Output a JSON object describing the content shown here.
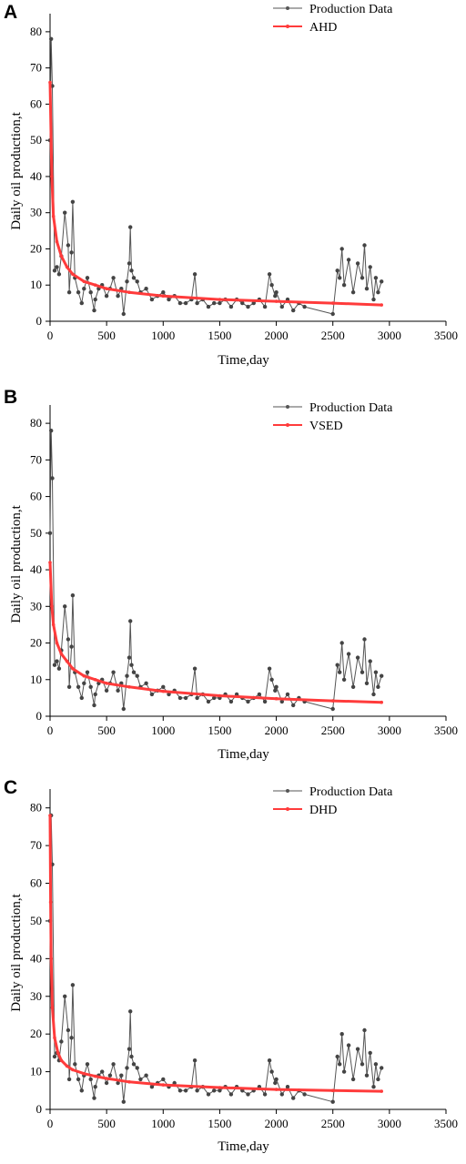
{
  "chart_data": [
    {
      "panel": "A",
      "type": "line",
      "xlabel": "Time,day",
      "ylabel": "Daily oil production,t",
      "xlim": [
        0,
        3500
      ],
      "ylim": [
        0,
        85
      ],
      "xticks": [
        0,
        500,
        1000,
        1500,
        2000,
        2500,
        3000,
        3500
      ],
      "yticks": [
        0,
        10,
        20,
        30,
        40,
        50,
        60,
        70,
        80
      ],
      "legend_position": "top-right",
      "series": [
        {
          "name": "Production Data",
          "color": "#555555",
          "x": [
            0,
            10,
            20,
            40,
            60,
            80,
            100,
            130,
            160,
            170,
            190,
            200,
            220,
            250,
            280,
            300,
            330,
            360,
            390,
            400,
            430,
            460,
            500,
            530,
            560,
            600,
            630,
            650,
            680,
            700,
            710,
            720,
            740,
            770,
            800,
            850,
            900,
            950,
            1000,
            1050,
            1100,
            1150,
            1200,
            1250,
            1280,
            1300,
            1350,
            1400,
            1450,
            1500,
            1550,
            1600,
            1650,
            1700,
            1750,
            1800,
            1850,
            1900,
            1940,
            1960,
            1990,
            2000,
            2050,
            2100,
            2150,
            2200,
            2250,
            2500,
            2540,
            2560,
            2580,
            2600,
            2640,
            2680,
            2720,
            2760,
            2780,
            2800,
            2830,
            2860,
            2880,
            2900,
            2930
          ],
          "y": [
            50,
            78,
            65,
            14,
            15,
            13,
            18,
            30,
            21,
            8,
            19,
            33,
            12,
            8,
            5,
            9,
            12,
            8,
            3,
            6,
            9,
            10,
            7,
            9,
            12,
            7,
            9,
            2,
            11,
            16,
            26,
            14,
            12,
            11,
            8,
            9,
            6,
            7,
            8,
            6,
            7,
            5,
            5,
            6,
            13,
            5,
            6,
            4,
            5,
            5,
            6,
            4,
            6,
            5,
            4,
            5,
            6,
            4,
            13,
            10,
            7,
            8,
            4,
            6,
            3,
            5,
            4,
            2,
            14,
            12,
            20,
            10,
            17,
            8,
            16,
            12,
            21,
            9,
            15,
            6,
            12,
            8,
            11
          ]
        },
        {
          "name": "AHD",
          "color": "#ff3b3b",
          "x": [
            0,
            15,
            30,
            60,
            100,
            150,
            200,
            300,
            400,
            500,
            700,
            1000,
            1500,
            2000,
            2500,
            2930
          ],
          "y": [
            66,
            40,
            29,
            22,
            18,
            15,
            13,
            11,
            10,
            9,
            8,
            7,
            6,
            5.5,
            5,
            4.5
          ]
        }
      ]
    },
    {
      "panel": "B",
      "type": "line",
      "xlabel": "Time,day",
      "ylabel": "Daily oil production,t",
      "xlim": [
        0,
        3500
      ],
      "ylim": [
        0,
        85
      ],
      "xticks": [
        0,
        500,
        1000,
        1500,
        2000,
        2500,
        3000,
        3500
      ],
      "yticks": [
        0,
        10,
        20,
        30,
        40,
        50,
        60,
        70,
        80
      ],
      "legend_position": "top-right",
      "series": [
        {
          "name": "Production Data",
          "color": "#555555",
          "x": [
            0,
            10,
            20,
            40,
            60,
            80,
            100,
            130,
            160,
            170,
            190,
            200,
            220,
            250,
            280,
            300,
            330,
            360,
            390,
            400,
            430,
            460,
            500,
            530,
            560,
            600,
            630,
            650,
            680,
            700,
            710,
            720,
            740,
            770,
            800,
            850,
            900,
            950,
            1000,
            1050,
            1100,
            1150,
            1200,
            1250,
            1280,
            1300,
            1350,
            1400,
            1450,
            1500,
            1550,
            1600,
            1650,
            1700,
            1750,
            1800,
            1850,
            1900,
            1940,
            1960,
            1990,
            2000,
            2050,
            2100,
            2150,
            2200,
            2250,
            2500,
            2540,
            2560,
            2580,
            2600,
            2640,
            2680,
            2720,
            2760,
            2780,
            2800,
            2830,
            2860,
            2880,
            2900,
            2930
          ],
          "y": [
            50,
            78,
            65,
            14,
            15,
            13,
            18,
            30,
            21,
            8,
            19,
            33,
            12,
            8,
            5,
            9,
            12,
            8,
            3,
            6,
            9,
            10,
            7,
            9,
            12,
            7,
            9,
            2,
            11,
            16,
            26,
            14,
            12,
            11,
            8,
            9,
            6,
            7,
            8,
            6,
            7,
            5,
            5,
            6,
            13,
            5,
            6,
            4,
            5,
            5,
            6,
            4,
            6,
            5,
            4,
            5,
            6,
            4,
            13,
            10,
            7,
            8,
            4,
            6,
            3,
            5,
            4,
            2,
            14,
            12,
            20,
            10,
            17,
            8,
            16,
            12,
            21,
            9,
            15,
            6,
            12,
            8,
            11
          ]
        },
        {
          "name": "VSED",
          "color": "#ff3b3b",
          "x": [
            0,
            15,
            30,
            60,
            100,
            150,
            200,
            300,
            400,
            500,
            700,
            1000,
            1500,
            2000,
            2500,
            2930
          ],
          "y": [
            42,
            30,
            25,
            20,
            17,
            15,
            13,
            11,
            10,
            9,
            8,
            6.8,
            5.6,
            4.8,
            4.2,
            3.8
          ]
        }
      ]
    },
    {
      "panel": "C",
      "type": "line",
      "xlabel": "Time,day",
      "ylabel": "Daily oil production,t",
      "xlim": [
        0,
        3500
      ],
      "ylim": [
        0,
        85
      ],
      "xticks": [
        0,
        500,
        1000,
        1500,
        2000,
        2500,
        3000,
        3500
      ],
      "yticks": [
        0,
        10,
        20,
        30,
        40,
        50,
        60,
        70,
        80
      ],
      "legend_position": "top-right",
      "series": [
        {
          "name": "Production Data",
          "color": "#555555",
          "x": [
            0,
            10,
            20,
            40,
            60,
            80,
            100,
            130,
            160,
            170,
            190,
            200,
            220,
            250,
            280,
            300,
            330,
            360,
            390,
            400,
            430,
            460,
            500,
            530,
            560,
            600,
            630,
            650,
            680,
            700,
            710,
            720,
            740,
            770,
            800,
            850,
            900,
            950,
            1000,
            1050,
            1100,
            1150,
            1200,
            1250,
            1280,
            1300,
            1350,
            1400,
            1450,
            1500,
            1550,
            1600,
            1650,
            1700,
            1750,
            1800,
            1850,
            1900,
            1940,
            1960,
            1990,
            2000,
            2050,
            2100,
            2150,
            2200,
            2250,
            2500,
            2540,
            2560,
            2580,
            2600,
            2640,
            2680,
            2720,
            2760,
            2780,
            2800,
            2830,
            2860,
            2880,
            2900,
            2930
          ],
          "y": [
            50,
            78,
            65,
            14,
            15,
            13,
            18,
            30,
            21,
            8,
            19,
            33,
            12,
            8,
            5,
            9,
            12,
            8,
            3,
            6,
            9,
            10,
            7,
            9,
            12,
            7,
            9,
            2,
            11,
            16,
            26,
            14,
            12,
            11,
            8,
            9,
            6,
            7,
            8,
            6,
            7,
            5,
            5,
            6,
            13,
            5,
            6,
            4,
            5,
            5,
            6,
            4,
            6,
            5,
            4,
            5,
            6,
            4,
            13,
            10,
            7,
            8,
            4,
            6,
            3,
            5,
            4,
            2,
            14,
            12,
            20,
            10,
            17,
            8,
            16,
            12,
            21,
            9,
            15,
            6,
            12,
            8,
            11
          ]
        },
        {
          "name": "DHD",
          "color": "#ff3b3b",
          "x": [
            0,
            5,
            10,
            20,
            40,
            70,
            100,
            150,
            200,
            300,
            400,
            500,
            700,
            1000,
            1500,
            2000,
            2500,
            2930
          ],
          "y": [
            78,
            55,
            40,
            27,
            19,
            15,
            13,
            11.5,
            10.5,
            9.5,
            8.8,
            8.2,
            7.3,
            6.5,
            5.8,
            5.3,
            5,
            4.8
          ]
        }
      ]
    }
  ]
}
